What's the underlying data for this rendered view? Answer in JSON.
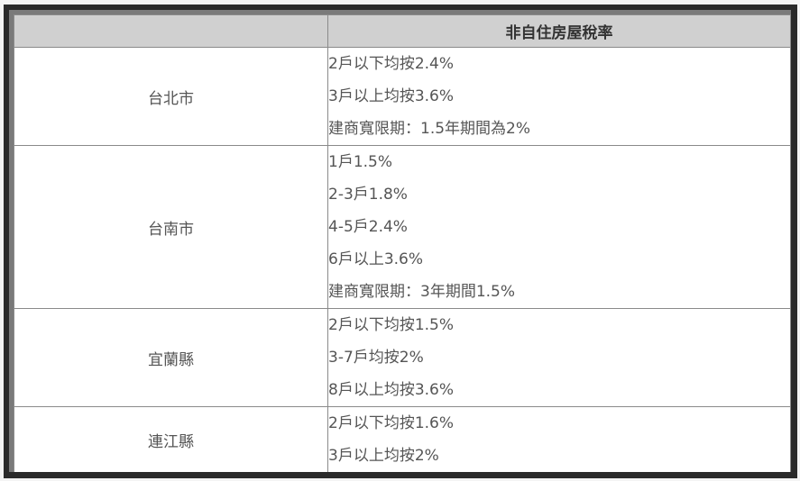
{
  "header": {
    "col1": "",
    "col2": "非自住房屋稅率"
  },
  "rows": [
    {
      "city": "台北市",
      "rates": [
        "2戶以下均按2.4%",
        "3戶以上均按3.6%",
        "建商寬限期：1.5年期間為2%"
      ]
    },
    {
      "city": "台南市",
      "rates": [
        "1戶1.5%",
        "2-3戶1.8%",
        "4-5戶2.4%",
        "6戶以上3.6%",
        "建商寬限期：3年期間1.5%"
      ]
    },
    {
      "city": "宜蘭縣",
      "rates": [
        "2戶以下均按1.5%",
        "3-7戶均按2%",
        "8戶以上均按3.6%"
      ]
    },
    {
      "city": "連江縣",
      "rates": [
        "2戶以下均按1.6%",
        "3戶以上均按2%"
      ]
    }
  ]
}
